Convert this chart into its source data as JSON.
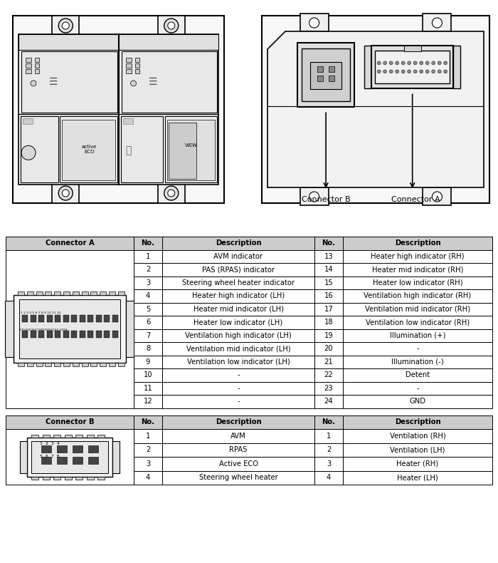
{
  "connector_a_rows": [
    {
      "no1": "1",
      "desc1": "AVM indicator",
      "no2": "13",
      "desc2": "Heater high indicator (RH)"
    },
    {
      "no1": "2",
      "desc1": "PAS (RPAS) indicator",
      "no2": "14",
      "desc2": "Heater mid indicator (RH)"
    },
    {
      "no1": "3",
      "desc1": "Steering wheel heater indicator",
      "no2": "15",
      "desc2": "Heater low indicator (RH)"
    },
    {
      "no1": "4",
      "desc1": "Heater high indicator (LH)",
      "no2": "16",
      "desc2": "Ventilation high indicator (RH)"
    },
    {
      "no1": "5",
      "desc1": "Heater mid indicator (LH)",
      "no2": "17",
      "desc2": "Ventilation mid indicator (RH)"
    },
    {
      "no1": "6",
      "desc1": "Heater low indicator (LH)",
      "no2": "18",
      "desc2": "Ventilation low indicator (RH)"
    },
    {
      "no1": "7",
      "desc1": "Ventilation high indicator (LH)",
      "no2": "19",
      "desc2": "Illumination (+)"
    },
    {
      "no1": "8",
      "desc1": "Ventilation mid indicator (LH)",
      "no2": "20",
      "desc2": "-"
    },
    {
      "no1": "9",
      "desc1": "Ventilation low indicator (LH)",
      "no2": "21",
      "desc2": "Illumination (-)"
    },
    {
      "no1": "10",
      "desc1": "-",
      "no2": "22",
      "desc2": "Detent"
    },
    {
      "no1": "11",
      "desc1": "-",
      "no2": "23",
      "desc2": "-"
    },
    {
      "no1": "12",
      "desc1": "-",
      "no2": "24",
      "desc2": "GND"
    }
  ],
  "connector_b_rows": [
    {
      "no1": "1",
      "desc1": "AVM",
      "no2": "1",
      "desc2": "Ventilation (RH)"
    },
    {
      "no1": "2",
      "desc1": "RPAS",
      "no2": "2",
      "desc2": "Ventilation (LH)"
    },
    {
      "no1": "3",
      "desc1": "Active ECO",
      "no2": "3",
      "desc2": "Heater (RH)"
    },
    {
      "no1": "4",
      "desc1": "Steering wheel heater",
      "no2": "4",
      "desc2": "Heater (LH)"
    }
  ],
  "header_bg": "#cccccc",
  "fig_bg": "#ffffff",
  "border_color": "#000000"
}
